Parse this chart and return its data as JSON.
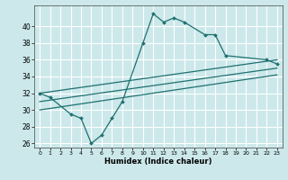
{
  "title": "",
  "xlabel": "Humidex (Indice chaleur)",
  "bg_color": "#cce8ea",
  "grid_color": "#ffffff",
  "line_color": "#1e7070",
  "xlim": [
    -0.5,
    23.5
  ],
  "ylim": [
    25.5,
    42.5
  ],
  "yticks": [
    26,
    28,
    30,
    32,
    34,
    36,
    38,
    40
  ],
  "xticks": [
    0,
    1,
    2,
    3,
    4,
    5,
    6,
    7,
    8,
    9,
    10,
    11,
    12,
    13,
    14,
    15,
    16,
    17,
    18,
    19,
    20,
    21,
    22,
    23
  ],
  "curve1_x": [
    0,
    1,
    3,
    4,
    5,
    6,
    7,
    8,
    10,
    11,
    12,
    13,
    14,
    16,
    17,
    18,
    22,
    23
  ],
  "curve1_y": [
    32,
    31.5,
    29.5,
    29,
    26,
    27,
    29,
    31,
    38,
    41.5,
    40.5,
    41,
    40.5,
    39,
    39,
    36.5,
    36,
    35.5
  ],
  "line1_x": [
    0,
    23
  ],
  "line1_y": [
    32.0,
    36.0
  ],
  "line2_x": [
    0,
    23
  ],
  "line2_y": [
    31.0,
    35.0
  ],
  "line3_x": [
    0,
    23
  ],
  "line3_y": [
    30.0,
    34.2
  ]
}
